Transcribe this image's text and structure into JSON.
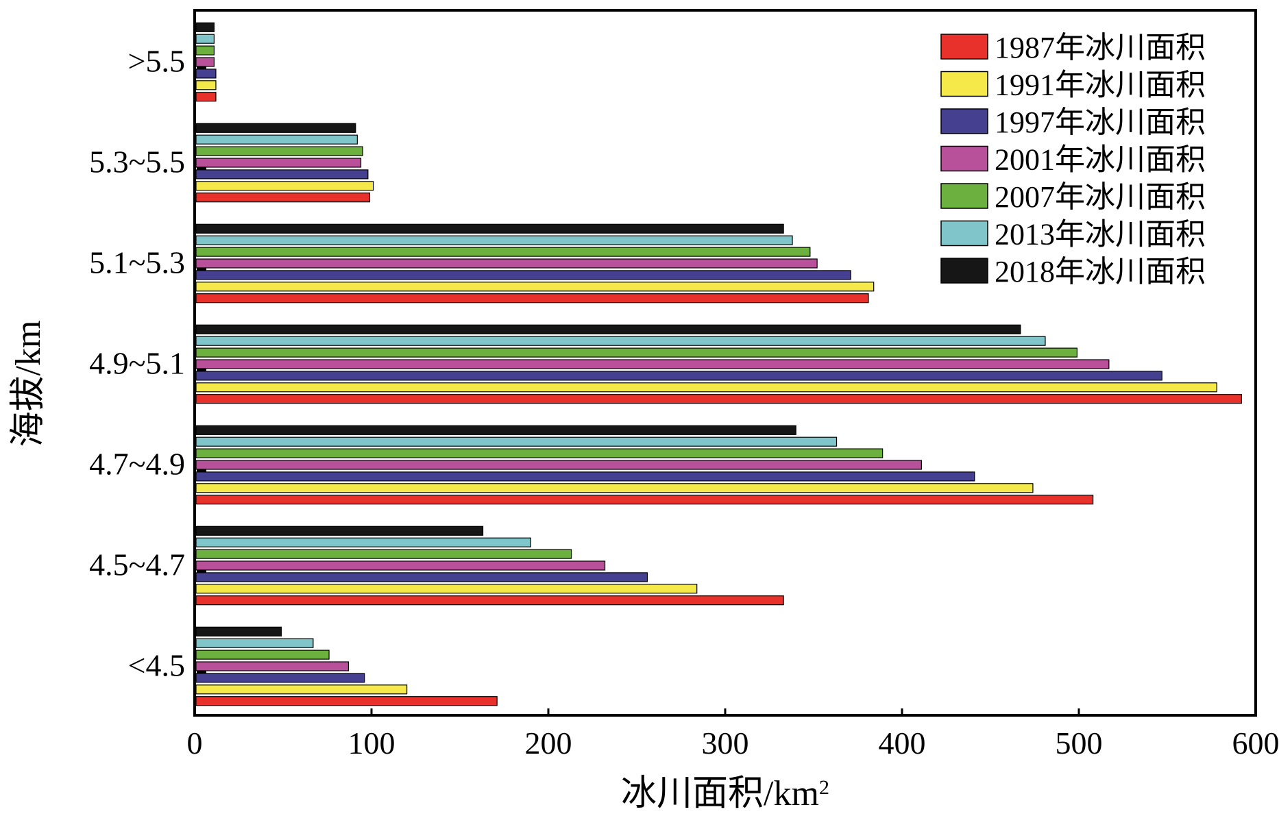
{
  "chart_data": {
    "type": "bar",
    "orientation": "horizontal",
    "title": "",
    "xlabel": "冰川面积/km",
    "xlabel_sup": "2",
    "ylabel": "海拔/km",
    "xlim": [
      0,
      600
    ],
    "xticks": [
      0,
      100,
      200,
      300,
      400,
      500,
      600
    ],
    "categories": [
      "<4.5",
      "4.5~4.7",
      "4.7~4.9",
      "4.9~5.1",
      "5.1~5.3",
      "5.3~5.5",
      ">5.5"
    ],
    "grid": false,
    "legend_position": "top-right",
    "series": [
      {
        "name": "1987年冰川面积",
        "color": "#e8312a",
        "values": [
          171,
          333,
          508,
          592,
          381,
          99,
          12
        ]
      },
      {
        "name": "1991年冰川面积",
        "color": "#f5e94a",
        "values": [
          120,
          284,
          474,
          578,
          384,
          101,
          12
        ]
      },
      {
        "name": "1997年冰川面积",
        "color": "#45408f",
        "values": [
          96,
          256,
          441,
          547,
          371,
          98,
          12
        ]
      },
      {
        "name": "2001年冰川面积",
        "color": "#b8509a",
        "values": [
          87,
          232,
          411,
          517,
          352,
          94,
          11
        ]
      },
      {
        "name": "2007年冰川面积",
        "color": "#6cb03f",
        "values": [
          76,
          213,
          389,
          499,
          348,
          95,
          11
        ]
      },
      {
        "name": "2013年冰川面积",
        "color": "#7fc5ca",
        "values": [
          67,
          190,
          363,
          481,
          338,
          92,
          11
        ]
      },
      {
        "name": "2018年冰川面积",
        "color": "#161616",
        "values": [
          49,
          163,
          340,
          467,
          333,
          91,
          11
        ]
      }
    ]
  }
}
